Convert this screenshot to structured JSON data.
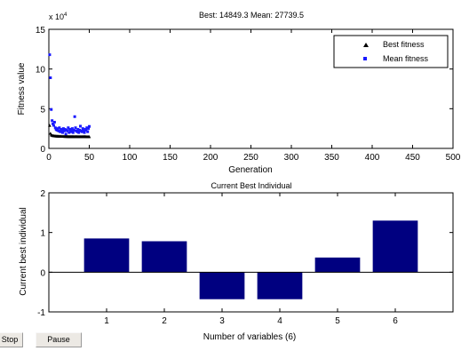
{
  "chart_data": [
    {
      "type": "scatter",
      "title": "Best: 14849.3 Mean: 27739.5",
      "xlabel": "Generation",
      "ylabel": "Fitness value",
      "y_multiplier": "x 10",
      "y_multiplier_exp": "4",
      "xlim": [
        0,
        500
      ],
      "ylim": [
        0,
        15
      ],
      "xticks": [
        "0",
        "50",
        "100",
        "150",
        "200",
        "250",
        "300",
        "350",
        "400",
        "450",
        "500"
      ],
      "yticks": [
        "0",
        "5",
        "10",
        "15"
      ],
      "grid": false,
      "legend_position": "top-right",
      "series": [
        {
          "name": "Best fitness",
          "color": "#000000",
          "marker": "triangle",
          "x": [
            1,
            2,
            3,
            4,
            5,
            6,
            7,
            8,
            9,
            10,
            11,
            12,
            13,
            14,
            15,
            16,
            17,
            18,
            19,
            20,
            21,
            22,
            23,
            24,
            25,
            26,
            27,
            28,
            29,
            30,
            31,
            32,
            33,
            34,
            35,
            36,
            37,
            38,
            39,
            40,
            41,
            42,
            43,
            44,
            45,
            46,
            47,
            48,
            49,
            50
          ],
          "values": [
            2.9,
            1.9,
            1.7,
            1.65,
            1.6,
            1.6,
            1.58,
            1.57,
            1.56,
            1.55,
            1.55,
            1.54,
            1.54,
            1.53,
            1.53,
            1.52,
            1.52,
            1.52,
            1.51,
            1.51,
            1.51,
            1.51,
            1.5,
            1.5,
            1.5,
            1.5,
            1.5,
            1.5,
            1.5,
            1.5,
            1.49,
            1.49,
            1.49,
            1.49,
            1.49,
            1.49,
            1.49,
            1.49,
            1.49,
            1.49,
            1.49,
            1.49,
            1.49,
            1.49,
            1.49,
            1.48,
            1.48,
            1.48,
            1.48,
            1.48
          ]
        },
        {
          "name": "Mean fitness",
          "color": "#1a1aff",
          "marker": "dot",
          "x": [
            1,
            2,
            3,
            4,
            5,
            6,
            7,
            8,
            9,
            10,
            11,
            12,
            13,
            14,
            15,
            16,
            17,
            18,
            19,
            20,
            21,
            22,
            23,
            24,
            25,
            26,
            27,
            28,
            29,
            30,
            31,
            32,
            33,
            34,
            35,
            36,
            37,
            38,
            39,
            40,
            41,
            42,
            43,
            44,
            45,
            46,
            47,
            48,
            49,
            50
          ],
          "values": [
            11.8,
            8.9,
            4.9,
            3.5,
            3.1,
            2.9,
            3.3,
            2.6,
            2.4,
            2.3,
            2.5,
            2.2,
            2.6,
            2.1,
            2.4,
            2.3,
            2.0,
            2.5,
            2.2,
            2.4,
            1.8,
            2.3,
            2.2,
            2.6,
            2.0,
            2.4,
            2.1,
            2.2,
            2.5,
            2.0,
            2.3,
            4.0,
            2.6,
            2.2,
            2.1,
            2.4,
            2.0,
            2.3,
            2.8,
            2.2,
            2.1,
            2.5,
            2.2,
            2.0,
            2.4,
            2.3,
            2.6,
            2.1,
            2.5,
            2.77
          ]
        }
      ]
    },
    {
      "type": "bar",
      "title": "Current Best Individual",
      "xlabel": "Number of variables (6)",
      "ylabel": "Current best individual",
      "categories": [
        "1",
        "2",
        "3",
        "4",
        "5",
        "6"
      ],
      "values": [
        0.85,
        0.78,
        -0.68,
        -0.68,
        0.37,
        1.3
      ],
      "ylim": [
        -1,
        2
      ],
      "yticks": [
        "-1",
        "0",
        "1",
        "2"
      ],
      "color": "#000080",
      "grid": false
    }
  ],
  "controls": {
    "stop_label": "Stop",
    "pause_label": "Pause"
  }
}
